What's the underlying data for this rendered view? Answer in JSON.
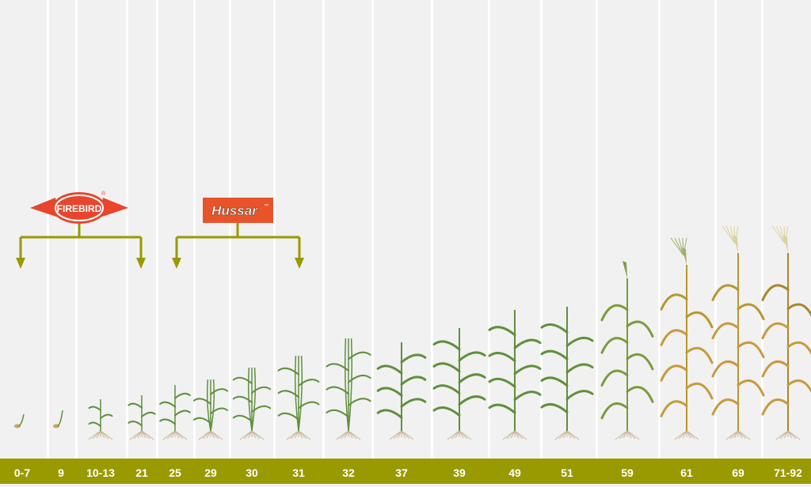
{
  "stages": [
    "0-7",
    "9",
    "10-13",
    "21",
    "25",
    "29",
    "30",
    "31",
    "32",
    "37",
    "39",
    "49",
    "51",
    "59",
    "61",
    "69",
    "71-92"
  ],
  "products": [
    {
      "name": "FIREBIRD",
      "mark": "®",
      "from_stage": "0-7",
      "to_stage": "21",
      "color": "#e8452c"
    },
    {
      "name": "Hussar",
      "mark": "™",
      "from_stage": "25",
      "to_stage": "31",
      "color": "#e8542a"
    }
  ],
  "colors": {
    "background": "#f1f1f1",
    "divider": "#ffffff",
    "bar": "#999900",
    "bracket": "#999900",
    "leaf_green": "#5f8f3c",
    "senescent": "#b8962e"
  }
}
